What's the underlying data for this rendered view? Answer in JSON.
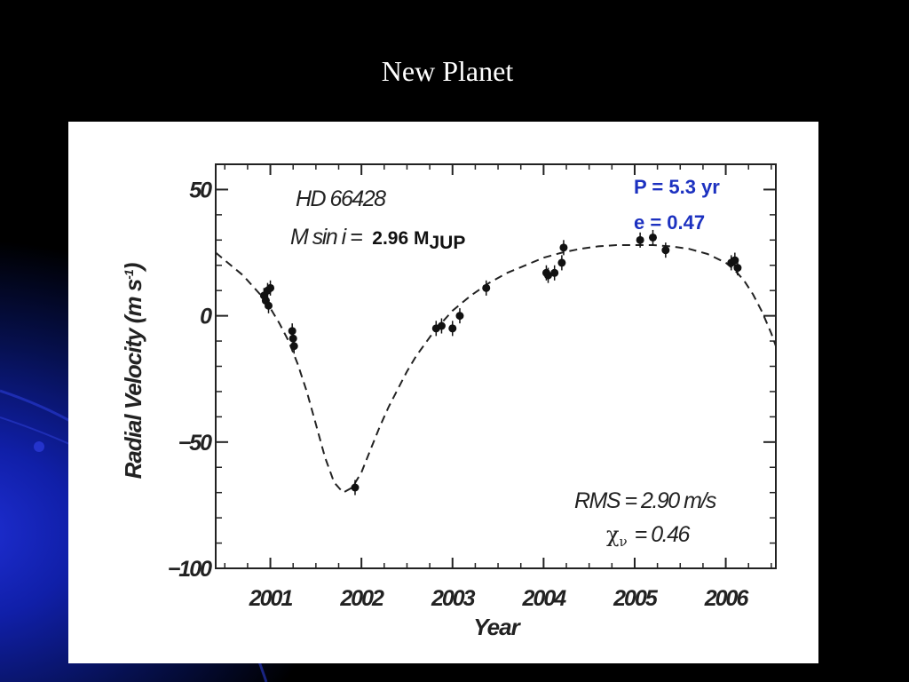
{
  "slide": {
    "title": "New Planet",
    "colors": {
      "background": "#000000",
      "accent_blue": "#1c31c0",
      "panel": "#ffffff"
    }
  },
  "chart_data": {
    "type": "scatter",
    "xlabel": "Year",
    "ylabel_main": "Radial Velocity  (m s",
    "ylabel_sup": "-1",
    "ylabel_close": ")",
    "xlim": [
      2000.4,
      2006.55
    ],
    "ylim": [
      -100,
      60
    ],
    "xticks": [
      2001,
      2002,
      2003,
      2004,
      2005,
      2006
    ],
    "xtick_labels": [
      "2001",
      "2002",
      "2003",
      "2004",
      "2005",
      "2006"
    ],
    "yticks": [
      50,
      0,
      -50,
      -100
    ],
    "ytick_labels": [
      "50",
      "0",
      "−50",
      "−100"
    ],
    "grid": false,
    "series": [
      {
        "kind": "observations",
        "x": [
          2000.93,
          2000.95,
          2000.97,
          2000.98,
          2001.0,
          2001.24,
          2001.25,
          2001.26,
          2001.93,
          2002.82,
          2002.88,
          2003.0,
          2003.08,
          2003.37,
          2004.03,
          2004.05,
          2004.12,
          2004.2,
          2004.22,
          2005.06,
          2005.2,
          2005.34,
          2006.06,
          2006.1,
          2006.13
        ],
        "y": [
          8,
          6,
          10,
          4,
          11,
          -6,
          -9,
          -12,
          -68,
          -5,
          -4,
          -5,
          0,
          11,
          17,
          16,
          17,
          21,
          27,
          30,
          31,
          26,
          21,
          22,
          19
        ],
        "err": [
          3,
          3,
          3,
          3,
          3,
          3,
          3,
          3,
          3,
          3,
          3,
          3,
          3,
          3,
          3,
          3,
          3,
          3,
          3,
          3,
          3,
          3,
          3,
          3,
          3
        ]
      },
      {
        "kind": "fit",
        "style": "dashed",
        "x": [
          2000.4,
          2000.5,
          2000.6,
          2000.7,
          2000.8,
          2000.9,
          2001.0,
          2001.1,
          2001.2,
          2001.3,
          2001.4,
          2001.5,
          2001.6,
          2001.7,
          2001.8,
          2001.9,
          2002.0,
          2002.1,
          2002.2,
          2002.3,
          2002.4,
          2002.5,
          2002.6,
          2002.7,
          2002.8,
          2002.9,
          2003.0,
          2003.2,
          2003.4,
          2003.6,
          2003.8,
          2004.0,
          2004.2,
          2004.4,
          2004.6,
          2004.8,
          2005.0,
          2005.2,
          2005.4,
          2005.6,
          2005.8,
          2006.0,
          2006.1,
          2006.2,
          2006.3,
          2006.4,
          2006.5,
          2006.55
        ],
        "y": [
          25,
          22,
          19,
          16,
          12,
          8,
          3,
          -3,
          -10,
          -19,
          -30,
          -43,
          -56,
          -66,
          -70,
          -68,
          -62,
          -53,
          -44,
          -36,
          -29,
          -22,
          -16,
          -11,
          -6,
          -2,
          2,
          8,
          13,
          17,
          20,
          23,
          25,
          26.5,
          27.5,
          28,
          28,
          28,
          27.5,
          26.5,
          24.5,
          21,
          18,
          14,
          8.5,
          1.5,
          -7,
          -12
        ]
      }
    ],
    "annotations": {
      "star": "HD 66428",
      "msini_label": "M sin i =",
      "msini_value": "2.96 M",
      "msini_sub": "JUP",
      "period": "P = 5.3 yr",
      "eccentricity": "e = 0.47",
      "rms": "RMS = 2.90 m/s",
      "chi_symbol": "χ",
      "chi_sub": "ν",
      "chi_value": "= 0.46"
    }
  }
}
